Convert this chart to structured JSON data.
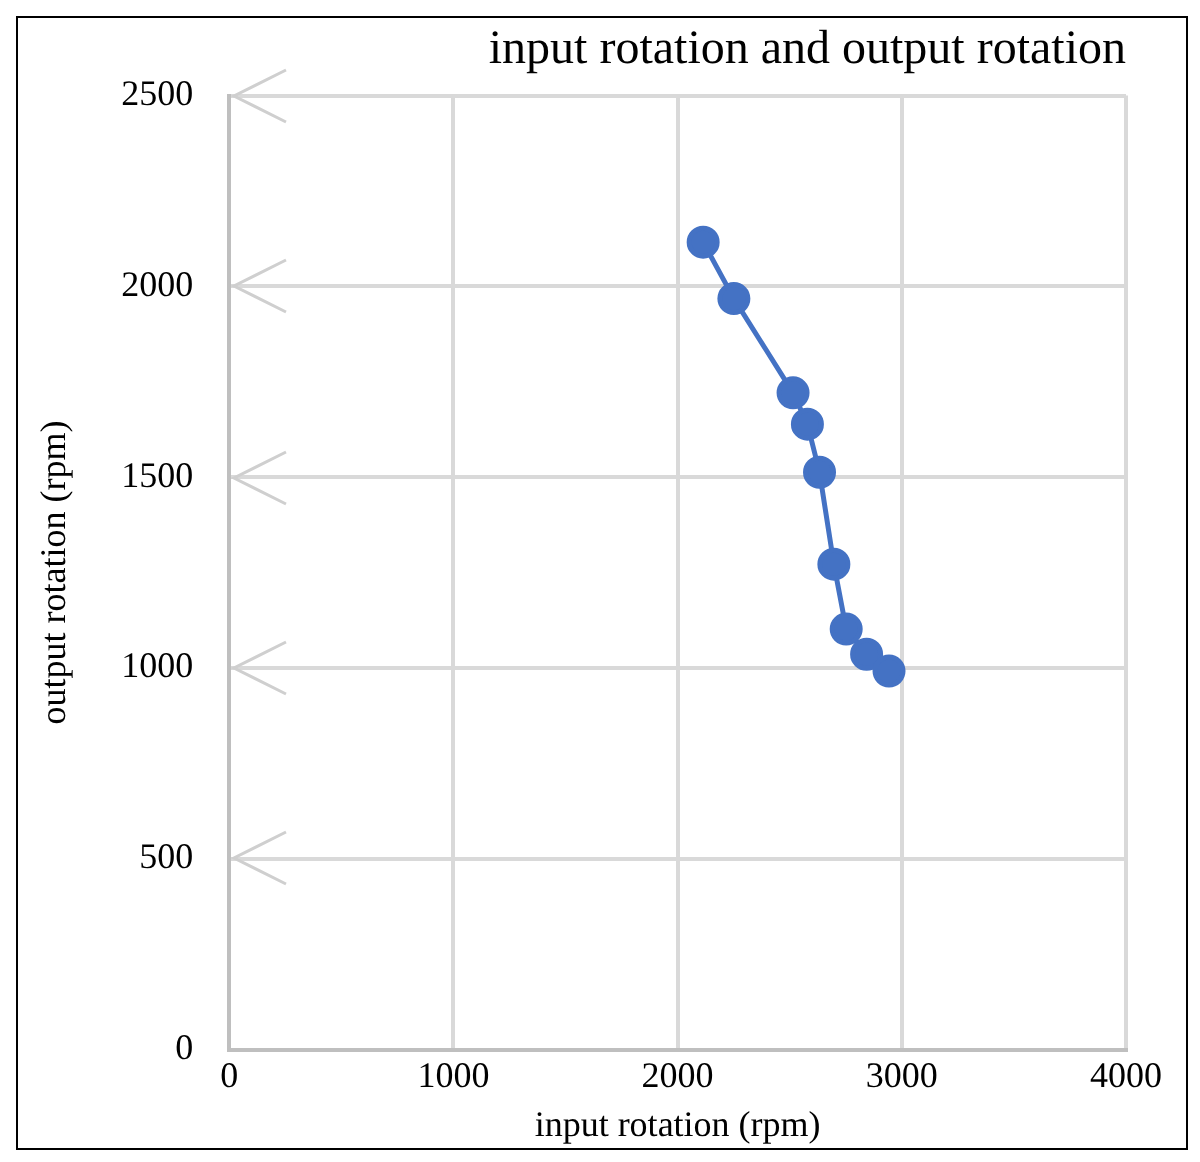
{
  "chart_data": {
    "type": "line",
    "title": "input rotation and output rotation",
    "xlabel": "input rotation (rpm)",
    "ylabel": "output rotation (rpm)",
    "x": [
      2114,
      2251,
      2515,
      2579,
      2633,
      2697,
      2752,
      2843,
      2943
    ],
    "series": [
      {
        "color": "#4472c4",
        "values": [
          2116,
          1968,
          1721,
          1639,
          1513,
          1272,
          1102,
          1036,
          992
        ]
      }
    ],
    "xlim": [
      0,
      4000
    ],
    "xticks": [
      0,
      1000,
      2000,
      3000,
      4000
    ],
    "ylim": [
      0,
      2500
    ],
    "yticks": [
      0,
      500,
      1000,
      1500,
      2000,
      2500
    ],
    "grid": true,
    "marker": "circle",
    "line_style": "solid",
    "legend": false
  }
}
